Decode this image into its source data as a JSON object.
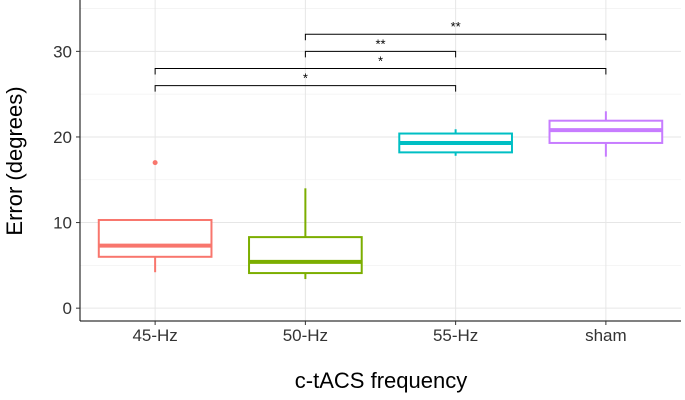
{
  "chart_data": {
    "type": "boxplot",
    "title": "",
    "xlabel": "c-tACS frequency",
    "ylabel": "Error (degrees)",
    "ylim": [
      -1.5,
      36
    ],
    "yticks": [
      0,
      10,
      20,
      30
    ],
    "grid": true,
    "legend": "none",
    "categories": [
      "45-Hz",
      "50-Hz",
      "55-Hz",
      "sham"
    ],
    "boxes": [
      {
        "category": "45-Hz",
        "color": "#F8766D",
        "whisker_low": 4.2,
        "q1": 6.0,
        "median": 7.3,
        "q3": 10.3,
        "whisker_high": 10.3,
        "outliers": [
          17.0
        ]
      },
      {
        "category": "50-Hz",
        "color": "#7CAE00",
        "whisker_low": 3.4,
        "q1": 4.1,
        "median": 5.4,
        "q3": 8.3,
        "whisker_high": 14.0,
        "outliers": []
      },
      {
        "category": "55-Hz",
        "color": "#00BFC4",
        "whisker_low": 17.8,
        "q1": 18.2,
        "median": 19.3,
        "q3": 20.4,
        "whisker_high": 20.9,
        "outliers": []
      },
      {
        "category": "sham",
        "color": "#C77CFF",
        "whisker_low": 17.7,
        "q1": 19.3,
        "median": 20.8,
        "q3": 21.9,
        "whisker_high": 23.0,
        "outliers": []
      }
    ],
    "comparisons": [
      {
        "from": "50-Hz",
        "to": "sham",
        "y": 32.0,
        "label": "**"
      },
      {
        "from": "50-Hz",
        "to": "55-Hz",
        "y": 30.0,
        "label": "**"
      },
      {
        "from": "45-Hz",
        "to": "sham",
        "y": 28.0,
        "label": "*"
      },
      {
        "from": "45-Hz",
        "to": "55-Hz",
        "y": 26.0,
        "label": "*"
      }
    ]
  }
}
